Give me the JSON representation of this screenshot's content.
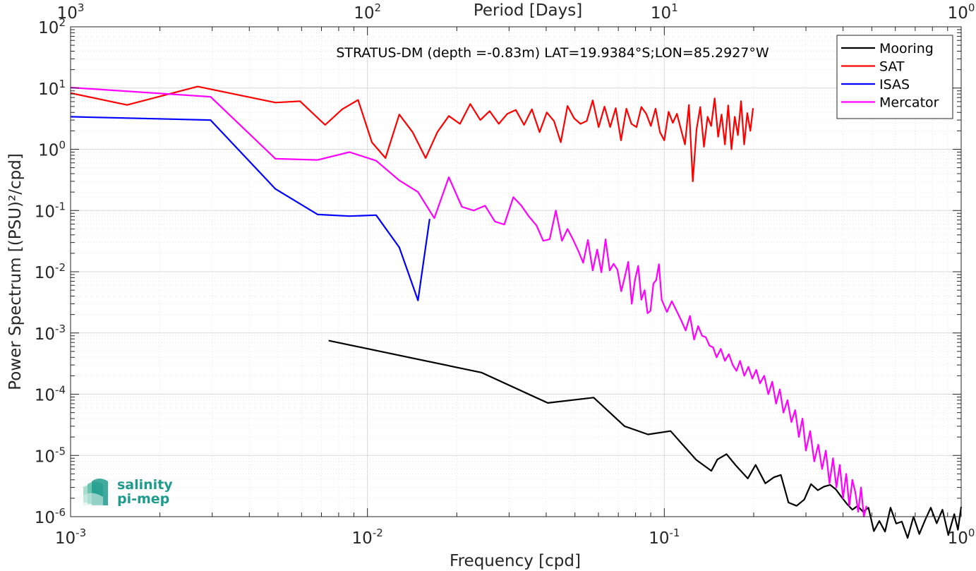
{
  "chart_data": {
    "type": "line",
    "xscale": "log",
    "yscale": "log",
    "xlim": [
      0.001,
      1
    ],
    "ylim": [
      1e-06,
      100
    ],
    "grid": true,
    "minor_grid": true,
    "xlabel": "Frequency [cpd]",
    "ylabel": "Power Spectrum [(PSU)²/cpd]",
    "top_xlabel": "Period [Days]",
    "annotation": "STRATUS-DM (depth =-0.83m) LAT=19.9384°S;LON=85.2927°W",
    "legend_position": "top-right",
    "x_tick_labels": [
      {
        "base": "10",
        "exp": "-3"
      },
      {
        "base": "10",
        "exp": "-2"
      },
      {
        "base": "10",
        "exp": "-1"
      },
      {
        "base": "10",
        "exp": "0"
      }
    ],
    "top_tick_labels": [
      {
        "base": "10",
        "exp": "3"
      },
      {
        "base": "10",
        "exp": "2"
      },
      {
        "base": "10",
        "exp": "1"
      },
      {
        "base": "10",
        "exp": "0"
      }
    ],
    "y_tick_labels": [
      {
        "base": "10",
        "exp": "2"
      },
      {
        "base": "10",
        "exp": "1"
      },
      {
        "base": "10",
        "exp": "0"
      },
      {
        "base": "10",
        "exp": "-1"
      },
      {
        "base": "10",
        "exp": "-2"
      },
      {
        "base": "10",
        "exp": "-3"
      },
      {
        "base": "10",
        "exp": "-4"
      },
      {
        "base": "10",
        "exp": "-5"
      },
      {
        "base": "10",
        "exp": "-6"
      }
    ],
    "series": [
      {
        "name": "Mooring",
        "color": "#000000",
        "x": [
          0.0074,
          0.0242,
          0.0405,
          0.0578,
          0.0735,
          0.0881,
          0.105,
          0.128,
          0.144,
          0.151,
          0.162,
          0.174,
          0.191,
          0.203,
          0.219,
          0.234,
          0.247,
          0.262,
          0.279,
          0.296,
          0.312,
          0.329,
          0.345,
          0.362,
          0.378,
          0.395,
          0.413,
          0.43,
          0.448,
          0.467,
          0.487,
          0.508,
          0.53,
          0.554,
          0.578,
          0.604,
          0.631,
          0.66,
          0.691,
          0.723,
          0.756,
          0.79,
          0.827,
          0.865,
          0.905,
          0.948,
          0.975,
          1.0
        ],
        "y": [
          0.00075,
          0.000226,
          7.2e-05,
          8.8e-05,
          3e-05,
          2.2e-05,
          2.5e-05,
          8.5e-06,
          5.6e-06,
          8.6e-06,
          1.05e-05,
          6.9e-06,
          4.2e-06,
          7e-06,
          3.5e-06,
          4.4e-06,
          4.8e-06,
          1.7e-06,
          1.5e-06,
          1.9e-06,
          3.4e-06,
          2.7e-06,
          3.1e-06,
          3.3e-06,
          2.8e-06,
          2.1e-06,
          1.6e-06,
          1.3e-06,
          1.5e-06,
          1.2e-06,
          1.4e-06,
          5.8e-07,
          8.5e-07,
          5.7e-07,
          1.4e-06,
          7.7e-07,
          8.3e-07,
          4.5e-07,
          1e-06,
          5.2e-07,
          8.8e-07,
          1.4e-06,
          7.8e-07,
          1.3e-06,
          5e-07,
          1.1e-06,
          6.1e-07,
          1.45e-06
        ]
      },
      {
        "name": "SAT",
        "color": "#ff0000",
        "x": [
          0.001,
          0.00155,
          0.00268,
          0.0049,
          0.00593,
          0.0072,
          0.00822,
          0.0093,
          0.01035,
          0.0115,
          0.0128,
          0.0142,
          0.0157,
          0.0172,
          0.0188,
          0.0205,
          0.0222,
          0.024,
          0.0258,
          0.0277,
          0.0296,
          0.0316,
          0.0337,
          0.0358,
          0.038,
          0.0402,
          0.0425,
          0.0448,
          0.0472,
          0.0497,
          0.0522,
          0.0548,
          0.0574,
          0.0601,
          0.0629,
          0.0657,
          0.0686,
          0.0715,
          0.0745,
          0.0775,
          0.0806,
          0.0837,
          0.0869,
          0.0901,
          0.0934,
          0.0967,
          0.1,
          0.1034,
          0.1068,
          0.1103,
          0.1138,
          0.1174,
          0.121,
          0.1247,
          0.1284,
          0.1322,
          0.136,
          0.1399,
          0.1438,
          0.1478,
          0.1518,
          0.1559,
          0.16,
          0.1642,
          0.1684,
          0.1727,
          0.177,
          0.1814,
          0.1858,
          0.1903,
          0.1948,
          0.199
        ],
        "y": [
          8.3,
          5.3,
          10.6,
          5.8,
          6.1,
          2.5,
          4.5,
          6.4,
          1.3,
          0.72,
          3.7,
          1.9,
          0.72,
          1.9,
          3.5,
          2.6,
          5.5,
          3.0,
          4.2,
          2.6,
          3.8,
          4.4,
          2.5,
          4.5,
          1.9,
          4.0,
          2.9,
          1.3,
          5.1,
          3.2,
          2.6,
          2.9,
          6.3,
          2.3,
          5.0,
          2.3,
          4.7,
          1.4,
          4.6,
          2.6,
          2.3,
          4.9,
          3.8,
          2.4,
          4.6,
          1.9,
          1.4,
          4.1,
          2.7,
          3.8,
          2.1,
          1.2,
          5.3,
          0.3,
          2.1,
          4.9,
          1.1,
          3.4,
          2.4,
          6.8,
          1.6,
          3.7,
          1.2,
          5.2,
          1.0,
          3.4,
          1.7,
          6.1,
          1.2,
          3.9,
          2.0,
          4.7
        ]
      },
      {
        "name": "ISAS",
        "color": "#0000ff",
        "x": [
          0.001,
          0.00296,
          0.0049,
          0.0068,
          0.0087,
          0.0107,
          0.0128,
          0.0148,
          0.0162
        ],
        "y": [
          3.4,
          3.0,
          0.225,
          0.086,
          0.081,
          0.084,
          0.025,
          0.0034,
          0.073
        ]
      },
      {
        "name": "Mercator",
        "color": "#ff00ff",
        "x": [
          0.001,
          0.00296,
          0.0049,
          0.0068,
          0.0087,
          0.0107,
          0.0128,
          0.0148,
          0.0168,
          0.0188,
          0.0208,
          0.0228,
          0.0249,
          0.0269,
          0.0289,
          0.031,
          0.033,
          0.035,
          0.0371,
          0.0391,
          0.0411,
          0.0431,
          0.0452,
          0.0472,
          0.0492,
          0.0513,
          0.0533,
          0.0553,
          0.0574,
          0.0594,
          0.0614,
          0.0634,
          0.0655,
          0.0675,
          0.0695,
          0.0716,
          0.0736,
          0.0756,
          0.0777,
          0.0797,
          0.0817,
          0.0837,
          0.0858,
          0.0878,
          0.0898,
          0.0919,
          0.0939,
          0.0959,
          0.098,
          0.102,
          0.106,
          0.11,
          0.114,
          0.118,
          0.122,
          0.126,
          0.13,
          0.134,
          0.138,
          0.142,
          0.146,
          0.15,
          0.155,
          0.16,
          0.165,
          0.17,
          0.175,
          0.18,
          0.186,
          0.192,
          0.198,
          0.204,
          0.21,
          0.217,
          0.224,
          0.231,
          0.238,
          0.245,
          0.252,
          0.26,
          0.268,
          0.276,
          0.284,
          0.292,
          0.3,
          0.31,
          0.32,
          0.33,
          0.34,
          0.35,
          0.36,
          0.37,
          0.38,
          0.39,
          0.4,
          0.41,
          0.42,
          0.43,
          0.44,
          0.45,
          0.46,
          0.47,
          0.48
        ],
        "y": [
          10.2,
          7.2,
          0.7,
          0.67,
          0.9,
          0.65,
          0.31,
          0.2,
          0.075,
          0.35,
          0.115,
          0.1,
          0.12,
          0.066,
          0.059,
          0.165,
          0.12,
          0.08,
          0.057,
          0.032,
          0.034,
          0.1,
          0.032,
          0.05,
          0.034,
          0.022,
          0.014,
          0.033,
          0.0105,
          0.023,
          0.0098,
          0.0338,
          0.0105,
          0.0135,
          0.0108,
          0.0048,
          0.0082,
          0.0145,
          0.003,
          0.0075,
          0.0125,
          0.0035,
          0.005,
          0.0021,
          0.0023,
          0.0064,
          0.0073,
          0.0133,
          0.0035,
          0.0022,
          0.0033,
          0.0023,
          0.0016,
          0.0011,
          0.0019,
          0.00078,
          0.0013,
          0.0009,
          0.00085,
          0.00062,
          0.00058,
          0.0004,
          0.00055,
          0.00035,
          0.00045,
          0.0003,
          0.00024,
          0.00035,
          0.0002,
          0.00028,
          0.00018,
          0.00025,
          0.00015,
          0.0002,
          0.0001,
          0.00016,
          7e-05,
          0.00012,
          5e-05,
          8e-05,
          3.5e-05,
          5.5e-05,
          2e-05,
          4e-05,
          1.2e-05,
          2.5e-05,
          8e-06,
          1.5e-05,
          6e-06,
          1.2e-05,
          3.5e-06,
          9e-06,
          3e-06,
          7e-06,
          2e-06,
          5e-06,
          1.5e-06,
          4e-06,
          2.5e-06,
          1.2e-06,
          3e-06,
          1e-06,
          1.5e-06
        ]
      }
    ]
  },
  "logo": {
    "line1": "salinity",
    "line2": "pi-mep",
    "color": "#1d9b8c"
  }
}
